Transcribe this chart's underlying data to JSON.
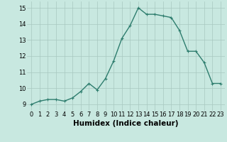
{
  "x": [
    0,
    1,
    2,
    3,
    4,
    5,
    6,
    7,
    8,
    9,
    10,
    11,
    12,
    13,
    14,
    15,
    16,
    17,
    18,
    19,
    20,
    21,
    22,
    23
  ],
  "y": [
    9.0,
    9.2,
    9.3,
    9.3,
    9.2,
    9.4,
    9.8,
    10.3,
    9.9,
    10.6,
    11.7,
    13.1,
    13.9,
    15.0,
    14.6,
    14.6,
    14.5,
    14.4,
    13.6,
    12.3,
    12.3,
    11.6,
    10.3,
    10.3
  ],
  "line_color": "#2e7d6e",
  "marker": "+",
  "marker_size": 3,
  "bg_color": "#c8e8e0",
  "grid_color": "#a8c8c0",
  "xlabel": "Humidex (Indice chaleur)",
  "xlim": [
    -0.5,
    23.5
  ],
  "ylim": [
    8.6,
    15.4
  ],
  "yticks": [
    9,
    10,
    11,
    12,
    13,
    14,
    15
  ],
  "xticks": [
    0,
    1,
    2,
    3,
    4,
    5,
    6,
    7,
    8,
    9,
    10,
    11,
    12,
    13,
    14,
    15,
    16,
    17,
    18,
    19,
    20,
    21,
    22,
    23
  ],
  "tick_fontsize": 6,
  "xlabel_fontsize": 7.5,
  "line_width": 1.0
}
